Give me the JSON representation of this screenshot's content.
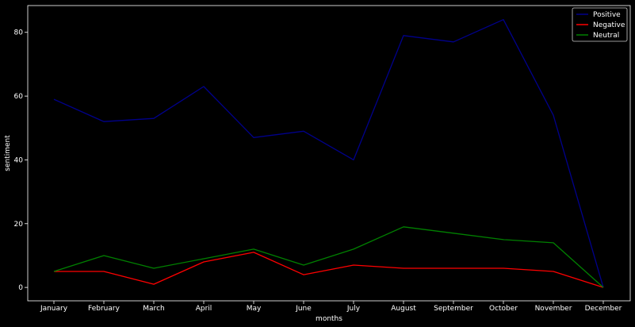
{
  "chart_data": {
    "type": "line",
    "xlabel": "months",
    "ylabel": "sentiment",
    "categories": [
      "January",
      "February",
      "March",
      "April",
      "May",
      "June",
      "July",
      "August",
      "September",
      "October",
      "November",
      "December"
    ],
    "yticks": [
      "0",
      "20",
      "40",
      "60",
      "80"
    ],
    "ylim": [
      -4.2,
      88.4
    ],
    "grid": false,
    "legend_position": "top-right",
    "background_color": "#000000",
    "series": [
      {
        "name": "Positive",
        "color": "#00008b",
        "values": [
          59,
          52,
          53,
          63,
          47,
          49,
          40,
          79,
          77,
          84,
          54,
          0
        ]
      },
      {
        "name": "Negative",
        "color": "#ff0000",
        "values": [
          5,
          5,
          1,
          8,
          11,
          4,
          7,
          6,
          6,
          6,
          5,
          0
        ]
      },
      {
        "name": "Neutral",
        "color": "#008000",
        "values": [
          5,
          10,
          6,
          9,
          12,
          7,
          12,
          19,
          17,
          15,
          14,
          0
        ]
      }
    ]
  }
}
